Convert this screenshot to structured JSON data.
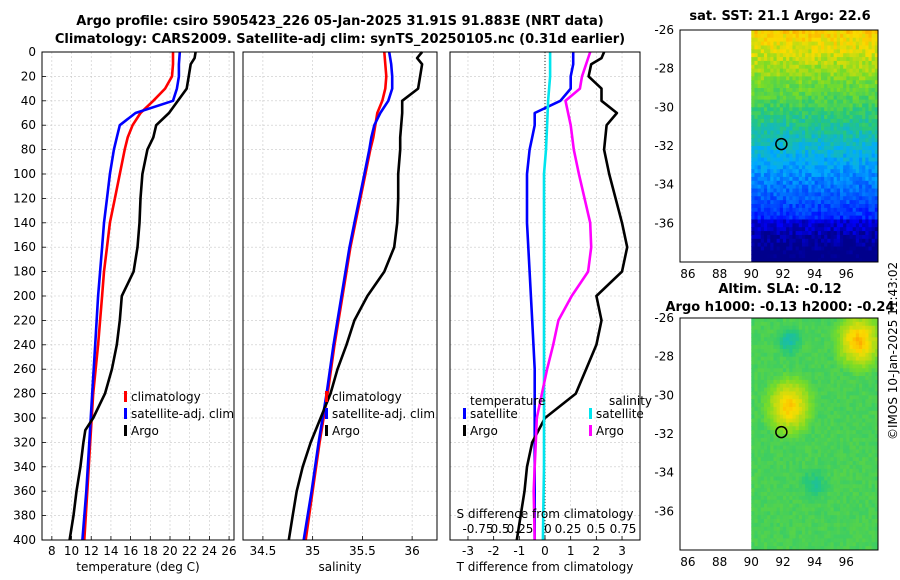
{
  "title_line1": "Argo profile: csiro 5905423_226 05-Jan-2025 31.91S 91.883E (NRT data)",
  "title_line2": "Climatology: CARS2009. Satellite-adj clim: synTS_20250105.nc (0.31d earlier)",
  "map1_title": "sat. SST: 21.1 Argo: 22.6",
  "map2_title1": "Altim. SLA: -0.12",
  "map2_title2": "Argo h1000: -0.13 h2000: -0.24",
  "copyright": "©IMOS 10-Jan-2025 11:43:02",
  "colors": {
    "climatology": "#ff0000",
    "satellite": "#0000ff",
    "argo": "#000000",
    "s_satellite": "#00e5ee",
    "s_argo": "#ff00ff"
  },
  "chart_data": [
    {
      "type": "line",
      "name": "temperature-profile",
      "xlabel": "temperature (deg C)",
      "ylim": [
        0,
        400
      ],
      "xlim": [
        7,
        26.5
      ],
      "xticks": [
        8,
        10,
        12,
        14,
        16,
        18,
        20,
        22,
        24,
        26
      ],
      "yticks": [
        0,
        20,
        40,
        60,
        80,
        100,
        120,
        140,
        160,
        180,
        200,
        220,
        240,
        260,
        280,
        300,
        320,
        340,
        360,
        380,
        400
      ],
      "legend": [
        "climatology",
        "satellite-adj. clim",
        "Argo"
      ],
      "series": [
        {
          "name": "climatology",
          "color": "#ff0000",
          "depth": [
            0,
            10,
            20,
            30,
            40,
            50,
            60,
            70,
            80,
            100,
            120,
            140,
            160,
            180,
            200,
            240,
            280,
            320,
            360,
            400
          ],
          "values": [
            20.3,
            20.3,
            20.2,
            19.5,
            18.3,
            17.0,
            16.2,
            15.7,
            15.4,
            14.9,
            14.4,
            13.9,
            13.6,
            13.3,
            13.1,
            12.7,
            12.2,
            11.9,
            11.6,
            11.3
          ]
        },
        {
          "name": "satellite-adj. clim",
          "color": "#0000ff",
          "depth": [
            0,
            10,
            20,
            30,
            40,
            50,
            60,
            70,
            80,
            100,
            120,
            140,
            160,
            180,
            200,
            240,
            280,
            320,
            360,
            400
          ],
          "values": [
            21.0,
            20.9,
            20.9,
            20.7,
            20.3,
            16.5,
            14.9,
            14.6,
            14.3,
            13.9,
            13.6,
            13.3,
            13.1,
            12.9,
            12.7,
            12.4,
            12.1,
            11.8,
            11.5,
            11.1
          ]
        },
        {
          "name": "Argo",
          "color": "#000000",
          "depth": [
            0,
            5,
            10,
            20,
            30,
            40,
            50,
            60,
            70,
            80,
            100,
            120,
            140,
            160,
            180,
            200,
            220,
            240,
            260,
            280,
            300,
            310,
            320,
            340,
            360,
            380,
            400
          ],
          "values": [
            22.6,
            22.5,
            22.1,
            21.9,
            21.7,
            20.8,
            19.9,
            18.6,
            18.3,
            17.7,
            17.2,
            17.0,
            16.9,
            16.7,
            16.3,
            15.1,
            14.9,
            14.6,
            14.1,
            13.4,
            12.2,
            11.4,
            11.2,
            10.9,
            10.5,
            10.2,
            9.8
          ]
        }
      ]
    },
    {
      "type": "line",
      "name": "salinity-profile",
      "xlabel": "salinity",
      "ylim": [
        0,
        400
      ],
      "xlim": [
        34.3,
        36.25
      ],
      "xticks": [
        34.5,
        35,
        35.5,
        36
      ],
      "legend": [
        "climatology",
        "satellite-adj. clim",
        "Argo"
      ],
      "series": [
        {
          "name": "climatology",
          "color": "#ff0000",
          "depth": [
            0,
            10,
            20,
            30,
            40,
            50,
            60,
            70,
            80,
            100,
            120,
            140,
            160,
            180,
            200,
            240,
            280,
            320,
            360,
            400
          ],
          "values": [
            35.72,
            35.73,
            35.74,
            35.73,
            35.7,
            35.65,
            35.63,
            35.61,
            35.58,
            35.53,
            35.48,
            35.43,
            35.38,
            35.34,
            35.3,
            35.22,
            35.15,
            35.07,
            35.0,
            34.93
          ]
        },
        {
          "name": "satellite-adj. clim",
          "color": "#0000ff",
          "depth": [
            0,
            10,
            20,
            30,
            40,
            50,
            60,
            70,
            80,
            100,
            120,
            140,
            160,
            180,
            200,
            240,
            280,
            320,
            360,
            400
          ],
          "values": [
            35.77,
            35.79,
            35.8,
            35.8,
            35.76,
            35.68,
            35.62,
            35.59,
            35.57,
            35.52,
            35.47,
            35.42,
            35.37,
            35.33,
            35.29,
            35.21,
            35.14,
            35.06,
            34.99,
            34.91
          ]
        },
        {
          "name": "Argo",
          "color": "#000000",
          "depth": [
            0,
            5,
            10,
            20,
            30,
            40,
            50,
            60,
            70,
            80,
            100,
            120,
            140,
            160,
            180,
            200,
            220,
            240,
            260,
            280,
            300,
            320,
            340,
            360,
            380,
            400
          ],
          "values": [
            36.1,
            36.05,
            36.1,
            36.08,
            36.06,
            35.9,
            35.9,
            35.89,
            35.88,
            35.88,
            35.86,
            35.86,
            35.85,
            35.82,
            35.72,
            35.55,
            35.42,
            35.34,
            35.25,
            35.18,
            35.08,
            34.98,
            34.9,
            34.84,
            34.8,
            34.76
          ]
        }
      ]
    },
    {
      "type": "line",
      "name": "difference-profile",
      "xlabel": "T difference from climatology",
      "x2label": "S difference from climatology",
      "ylim": [
        0,
        400
      ],
      "xlim": [
        -3.7,
        3.7
      ],
      "xticks": [
        -3,
        -2,
        -1,
        0,
        1,
        2,
        3
      ],
      "x2ticks": [
        "-0.75",
        "0.5",
        "0.25",
        "0",
        "0.25",
        "0.5",
        "0.75"
      ],
      "legend_t_title": "temperature",
      "legend_s_title": "salinity",
      "legend": [
        "satellite",
        "Argo",
        "satellite",
        "Argo"
      ],
      "series": [
        {
          "name": "T satellite",
          "color": "#0000ff",
          "depth": [
            0,
            10,
            20,
            30,
            40,
            50,
            60,
            70,
            80,
            100,
            140,
            180,
            220,
            260,
            300,
            340,
            400
          ],
          "values": [
            1.1,
            1.1,
            1.0,
            1.0,
            0.6,
            -0.4,
            -0.4,
            -0.5,
            -0.6,
            -0.7,
            -0.7,
            -0.6,
            -0.5,
            -0.4,
            -0.4,
            -0.4,
            -0.4
          ]
        },
        {
          "name": "T Argo",
          "color": "#000000",
          "depth": [
            0,
            5,
            10,
            20,
            30,
            40,
            50,
            60,
            80,
            100,
            140,
            160,
            180,
            200,
            220,
            240,
            260,
            280,
            300,
            320,
            340,
            360,
            400
          ],
          "values": [
            2.3,
            2.2,
            1.8,
            1.7,
            2.2,
            2.2,
            2.8,
            2.4,
            2.3,
            2.5,
            3.0,
            3.2,
            3.0,
            2.0,
            2.2,
            2.0,
            1.6,
            1.2,
            0.0,
            -0.5,
            -0.7,
            -0.8,
            -1.1
          ]
        },
        {
          "name": "S satellite",
          "color": "#00e5ee",
          "depth": [
            0,
            20,
            40,
            60,
            80,
            100,
            140,
            180,
            220,
            260,
            300,
            340,
            400
          ],
          "values": [
            0.05,
            0.05,
            0.03,
            0.02,
            0.01,
            -0.01,
            -0.01,
            -0.01,
            -0.01,
            -0.01,
            -0.01,
            -0.01,
            -0.02
          ]
        },
        {
          "name": "S Argo",
          "color": "#ff00ff",
          "depth": [
            0,
            10,
            20,
            30,
            40,
            60,
            80,
            100,
            140,
            160,
            180,
            200,
            220,
            240,
            260,
            280,
            300,
            320,
            340,
            360,
            400
          ],
          "values": [
            0.44,
            0.4,
            0.36,
            0.34,
            0.2,
            0.25,
            0.28,
            0.33,
            0.44,
            0.45,
            0.42,
            0.26,
            0.13,
            0.08,
            0.02,
            -0.03,
            -0.08,
            -0.09,
            -0.1,
            -0.11,
            -0.1
          ]
        }
      ]
    },
    {
      "type": "heatmap",
      "name": "sst-map",
      "title": "sat. SST: 21.1 Argo: 22.6",
      "xlim": [
        85.5,
        98
      ],
      "ylim": [
        -38,
        -26
      ],
      "xticks": [
        86,
        88,
        90,
        92,
        94,
        96
      ],
      "yticks": [
        -26,
        -28,
        -30,
        -32,
        -34,
        -36
      ],
      "data_lon_range": [
        90,
        98
      ],
      "argo_position": [
        91.9,
        -31.9
      ]
    },
    {
      "type": "heatmap",
      "name": "sla-map",
      "title": "Altim. SLA: -0.12",
      "xlim": [
        85.5,
        98
      ],
      "ylim": [
        -38,
        -26
      ],
      "xticks": [
        86,
        88,
        90,
        92,
        94,
        96
      ],
      "yticks": [
        -26,
        -28,
        -30,
        -32,
        -34,
        -36
      ],
      "data_lon_range": [
        90,
        98
      ],
      "argo_position": [
        91.9,
        -31.9
      ]
    }
  ]
}
